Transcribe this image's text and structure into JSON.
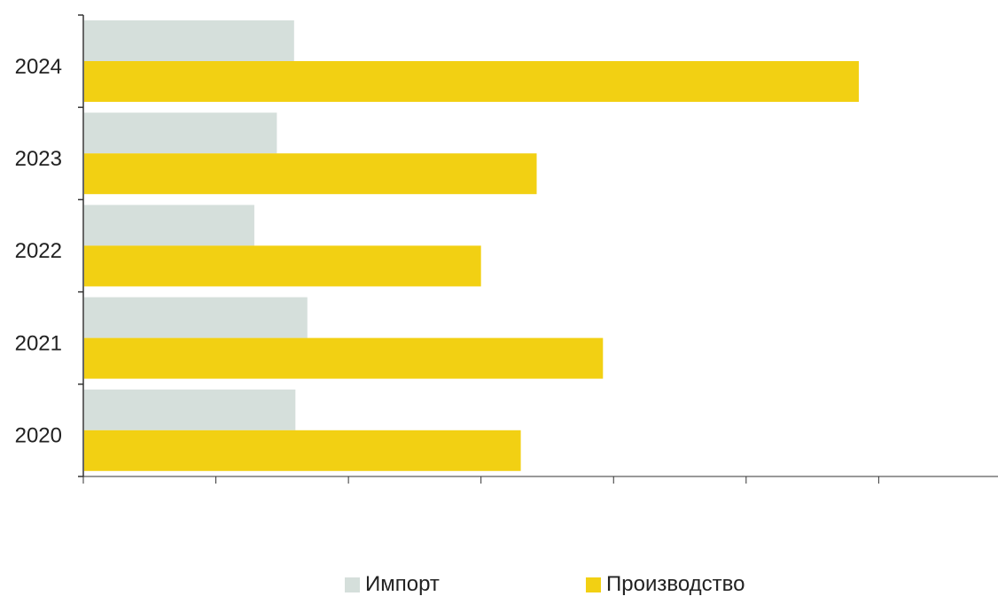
{
  "chart_data": {
    "type": "bar",
    "orientation": "horizontal",
    "categories": [
      "2024",
      "2023",
      "2022",
      "2021",
      "2020"
    ],
    "series": [
      {
        "name": "Импорт",
        "color": "#d5dfdb",
        "values": [
          1.59,
          1.46,
          1.29,
          1.69,
          1.6
        ]
      },
      {
        "name": "Производство",
        "color": "#f2d013",
        "values": [
          5.85,
          3.42,
          3.0,
          3.92,
          3.3
        ]
      }
    ],
    "xlim": [
      0,
      6.9
    ],
    "x_ticks": [
      0,
      1,
      2,
      3,
      4,
      5,
      6
    ],
    "x_tick_labels_shown": false,
    "grid": false,
    "legend_position": "bottom",
    "title": "",
    "xlabel": "",
    "ylabel": ""
  },
  "legend": {
    "import_label": "Импорт",
    "production_label": "Производство"
  },
  "colors": {
    "import": "#d5dfdb",
    "production": "#f2d013",
    "axis": "#333333"
  }
}
